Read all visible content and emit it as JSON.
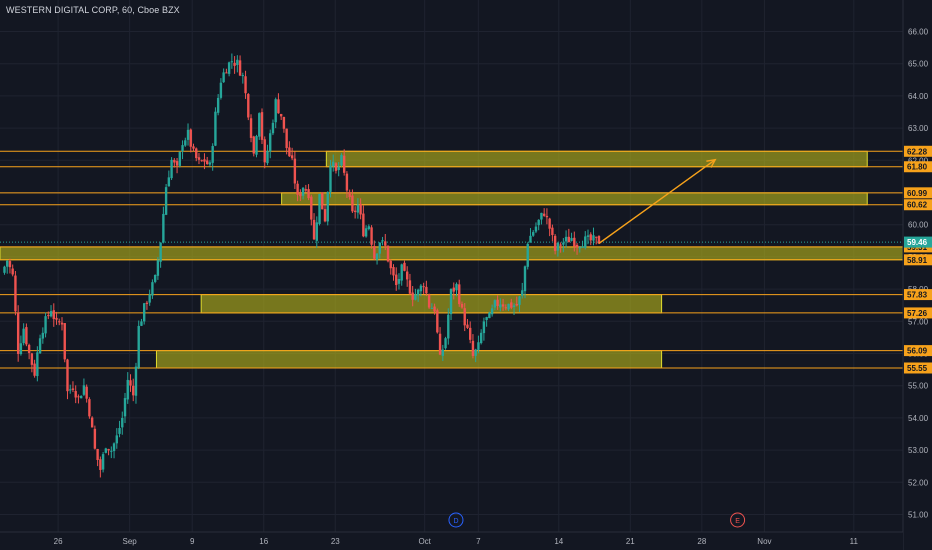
{
  "symbol": {
    "title": "WESTERN DIGITAL CORP, 60, Cboe BZX"
  },
  "colors": {
    "background": "#131722",
    "grid": "#1f2330",
    "up_candle": "#26a69a",
    "down_candle": "#ef5350",
    "level_line": "#f7a21b",
    "zone_fill": "#b5b31a",
    "zone_border": "#e1dc2e",
    "price_tag_bg": "#f7a21b",
    "current_price_bg": "#26a69a",
    "axis_text": "#b2b5be",
    "marker_dividend": "#2962ff",
    "marker_earnings": "#ef5350"
  },
  "chart_data": {
    "type": "candlestick",
    "timeframe": "60",
    "ylim": [
      50.7,
      66.7
    ],
    "y_ticks": [
      "51.00",
      "52.00",
      "53.00",
      "54.00",
      "55.00",
      "56.00",
      "57.00",
      "58.00",
      "59.00",
      "60.00",
      "61.00",
      "62.00",
      "63.00",
      "64.00",
      "65.00",
      "66.00"
    ],
    "x_ticks": [
      {
        "label": "26",
        "index": 6
      },
      {
        "label": "Sep",
        "index": 14
      },
      {
        "label": "9",
        "index": 21
      },
      {
        "label": "16",
        "index": 29
      },
      {
        "label": "23",
        "index": 37
      },
      {
        "label": "Oct",
        "index": 47
      },
      {
        "label": "7",
        "index": 53
      },
      {
        "label": "14",
        "index": 62
      },
      {
        "label": "21",
        "index": 70
      },
      {
        "label": "28",
        "index": 78
      },
      {
        "label": "Nov",
        "index": 85
      },
      {
        "label": "11",
        "index": 95
      }
    ],
    "x_count": 101,
    "price_levels": [
      {
        "label": "62.28",
        "value": 62.28
      },
      {
        "label": "61.80",
        "value": 61.8
      },
      {
        "label": "60.99",
        "value": 60.99
      },
      {
        "label": "60.62",
        "value": 60.62
      },
      {
        "label": "59.31",
        "value": 59.31
      },
      {
        "label": "58.91",
        "value": 58.91
      },
      {
        "label": "57.83",
        "value": 57.83
      },
      {
        "label": "57.26",
        "value": 57.26
      },
      {
        "label": "56.09",
        "value": 56.09
      },
      {
        "label": "55.55",
        "value": 55.55
      }
    ],
    "axis_overlap_labels": [
      "62.00",
      "61.00"
    ],
    "current_price": {
      "label": "59.46",
      "value": 59.46
    },
    "zones": [
      {
        "name": "zone-62",
        "top": 62.28,
        "bottom": 61.8,
        "x_start": 36,
        "x_end": 96.5
      },
      {
        "name": "zone-60-9",
        "top": 60.99,
        "bottom": 60.62,
        "x_start": 31,
        "x_end": 96.5
      },
      {
        "name": "zone-59-1",
        "top": 59.31,
        "bottom": 58.91,
        "x_start": 0,
        "x_end": 101
      },
      {
        "name": "zone-57-5",
        "top": 57.83,
        "bottom": 57.26,
        "x_start": 22,
        "x_end": 73.5
      },
      {
        "name": "zone-55-8",
        "top": 56.09,
        "bottom": 55.55,
        "x_start": 17,
        "x_end": 73.5
      }
    ],
    "arrow": {
      "from": {
        "x": 66.5,
        "y": 59.42
      },
      "to": {
        "x": 79.5,
        "y": 62.02
      }
    },
    "markers": [
      {
        "label": "D",
        "index": 50.5,
        "kind": "dividend"
      },
      {
        "label": "E",
        "index": 82,
        "kind": "earnings"
      }
    ],
    "candles": [
      [
        58.5,
        58.9,
        58.4,
        56.1,
        56.8,
        56.0,
        55.4,
        56.6,
        57.0,
        57.4
      ],
      [
        56.9,
        57.0,
        54.8,
        55.0,
        54.6,
        55.0,
        54.2,
        53.0,
        52.4,
        53.2
      ],
      [
        53.0,
        53.4,
        54.0,
        55.2,
        54.7,
        56.8,
        57.4,
        57.9,
        58.3,
        59.5
      ],
      [
        61.2,
        62.0,
        61.7,
        62.6,
        62.8,
        62.2,
        61.9,
        62.0,
        61.8,
        63.4
      ],
      [
        64.5,
        64.9,
        65.1,
        65.0,
        64.6,
        63.5,
        62.2,
        63.6,
        61.8,
        62.8
      ],
      [
        63.8,
        63.4,
        62.4,
        61.9,
        60.8,
        61.2,
        61.0,
        59.5,
        60.9,
        60.2
      ],
      [
        62.0,
        61.6,
        62.0,
        61.1,
        60.3,
        60.6,
        59.8,
        60.0,
        59.0,
        59.5
      ],
      [
        59.3,
        58.6,
        58.1,
        58.6,
        58.2,
        57.8,
        57.9,
        58.2,
        57.5,
        57.4
      ],
      [
        55.8,
        56.5,
        57.9,
        58.1,
        57.3,
        56.7,
        55.9,
        56.2,
        57.0,
        57.1
      ],
      [
        57.5,
        57.6,
        57.5,
        57.5,
        57.5,
        57.9,
        59.5,
        59.8,
        60.1,
        60.4
      ],
      [
        59.9,
        59.2,
        59.4,
        59.5,
        59.6,
        59.4,
        59.5,
        59.5,
        59.5,
        59.5
      ]
    ]
  }
}
